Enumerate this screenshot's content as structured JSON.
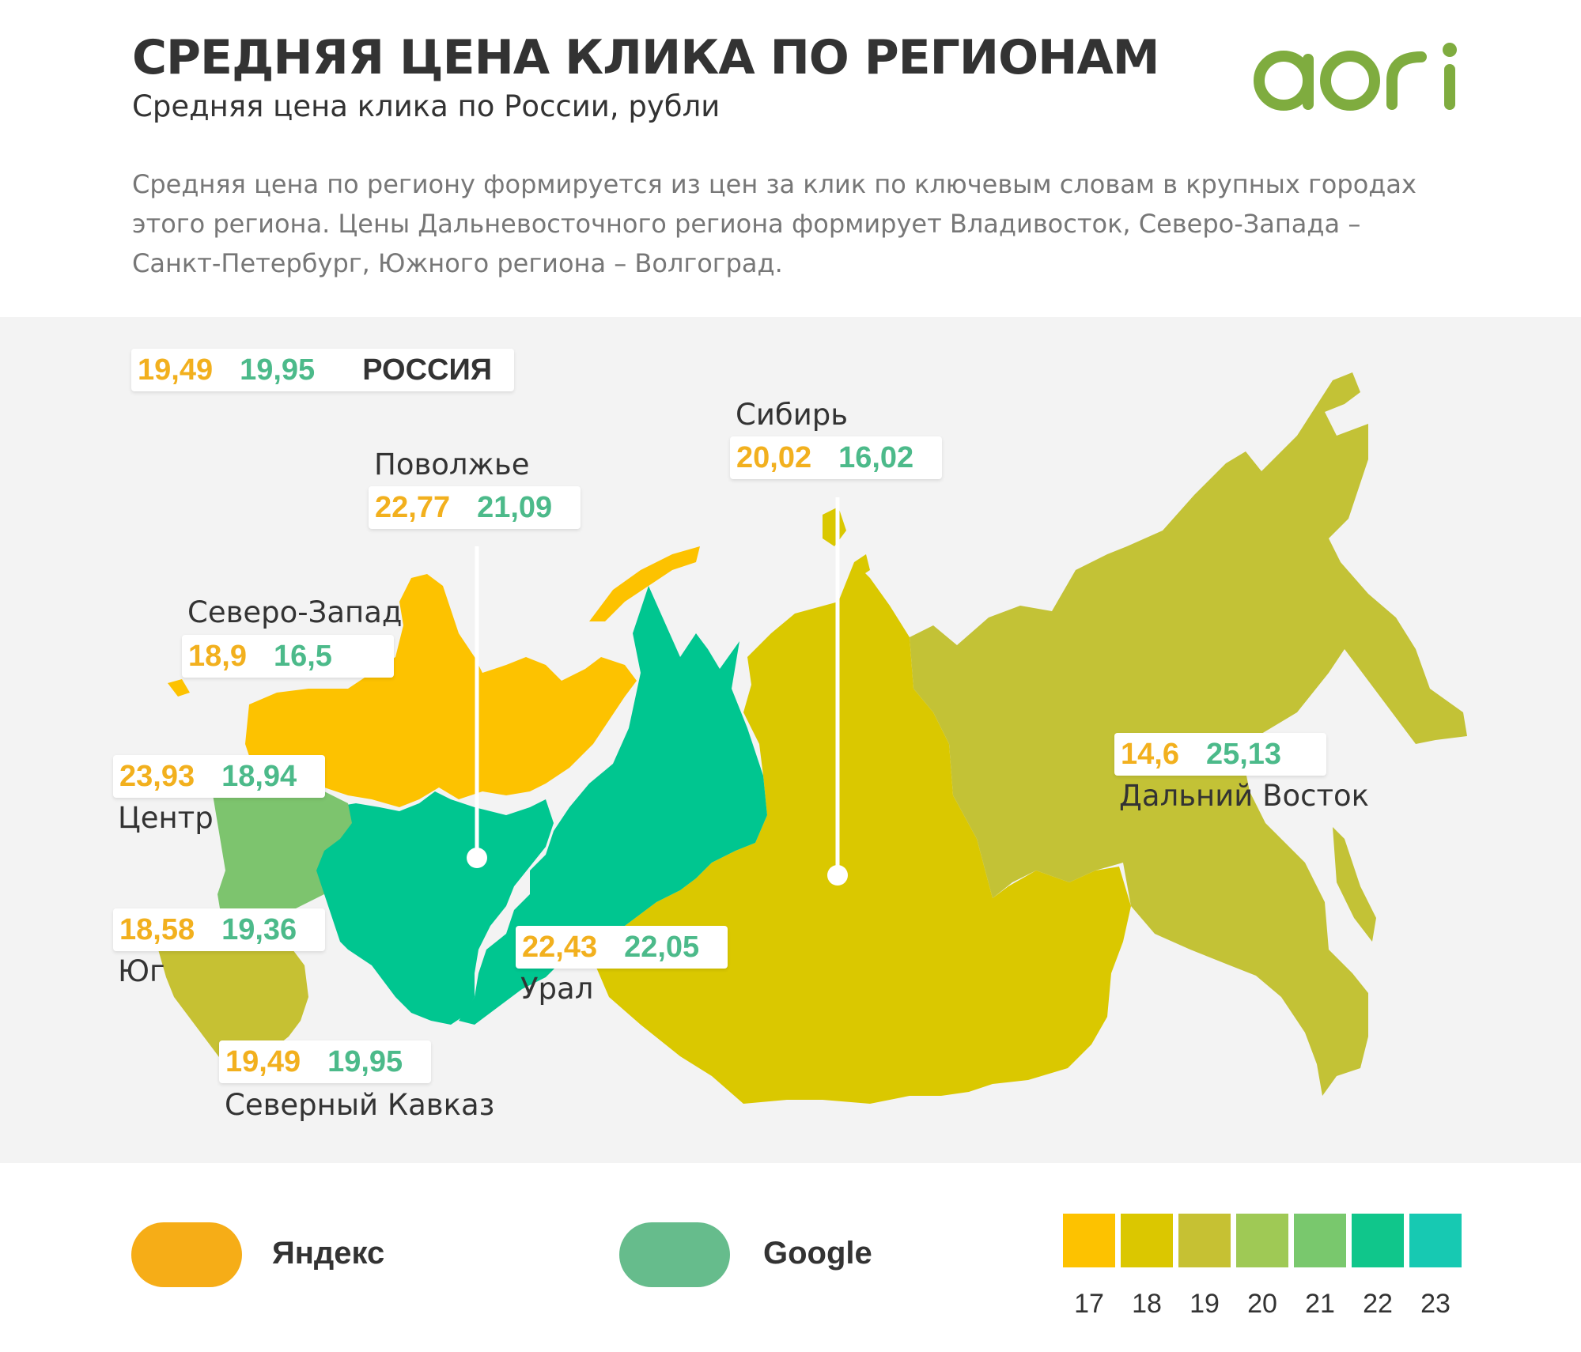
{
  "header": {
    "title": "СРЕДНЯЯ ЦЕНА КЛИКА ПО РЕГИОНАМ",
    "subtitle": "Средняя цена клика по России, рубли",
    "description_lines": [
      "Средняя цена по региону формируется из цен за клик по ключевым словам в крупных городах",
      "этого региона. Цены Дальневосточного региона формирует Владивосток, Северо-Запада –",
      "Санкт-Петербург, Южного региона – Волгоград."
    ]
  },
  "logo": {
    "text": "aori",
    "color": "#7fac3f"
  },
  "russia": {
    "yandex": "19,49",
    "google": "19,95",
    "label": "РОССИЯ"
  },
  "regions": [
    {
      "id": "volga",
      "name": "Поволжье",
      "yandex": "22,77",
      "google": "21,09",
      "fill": "#00c690"
    },
    {
      "id": "siberia",
      "name": "Сибирь",
      "yandex": "20,02",
      "google": "16,02",
      "fill": "#dac800"
    },
    {
      "id": "northwest",
      "name": "Северо-Запад",
      "yandex": "18,9",
      "google": "16,5",
      "fill": "#fdc200"
    },
    {
      "id": "center",
      "name": "Центр",
      "yandex": "23,93",
      "google": "18,94",
      "fill": "#7dc46e"
    },
    {
      "id": "south",
      "name": "Юг",
      "yandex": "18,58",
      "google": "19,36",
      "fill": "#c6c133"
    },
    {
      "id": "caucasus",
      "name": "Северный Кавказ",
      "yandex": "19,49",
      "google": "19,95",
      "fill": "#c6c133"
    },
    {
      "id": "ural",
      "name": "Урал",
      "yandex": "22,43",
      "google": "22,05",
      "fill": "#00c690"
    },
    {
      "id": "fareast",
      "name": "Дальний Восток",
      "yandex": "14,6",
      "google": "25,13",
      "fill": "#c3c236"
    }
  ],
  "legend": {
    "yandex": {
      "label": "Яндекс",
      "color": "#f6ad17"
    },
    "google": {
      "label": "Google",
      "color": "#66bc8c"
    }
  },
  "scale": [
    {
      "label": "17",
      "color": "#fdc200"
    },
    {
      "label": "18",
      "color": "#dbc700"
    },
    {
      "label": "19",
      "color": "#c6c133"
    },
    {
      "label": "20",
      "color": "#9fc955"
    },
    {
      "label": "21",
      "color": "#79c86d"
    },
    {
      "label": "22",
      "color": "#10c68b"
    },
    {
      "label": "23",
      "color": "#17c9b2"
    }
  ],
  "colors": {
    "background_map": "#f3f3f3",
    "yandex_text": "#f2b01e",
    "google_text": "#4cba8a"
  }
}
